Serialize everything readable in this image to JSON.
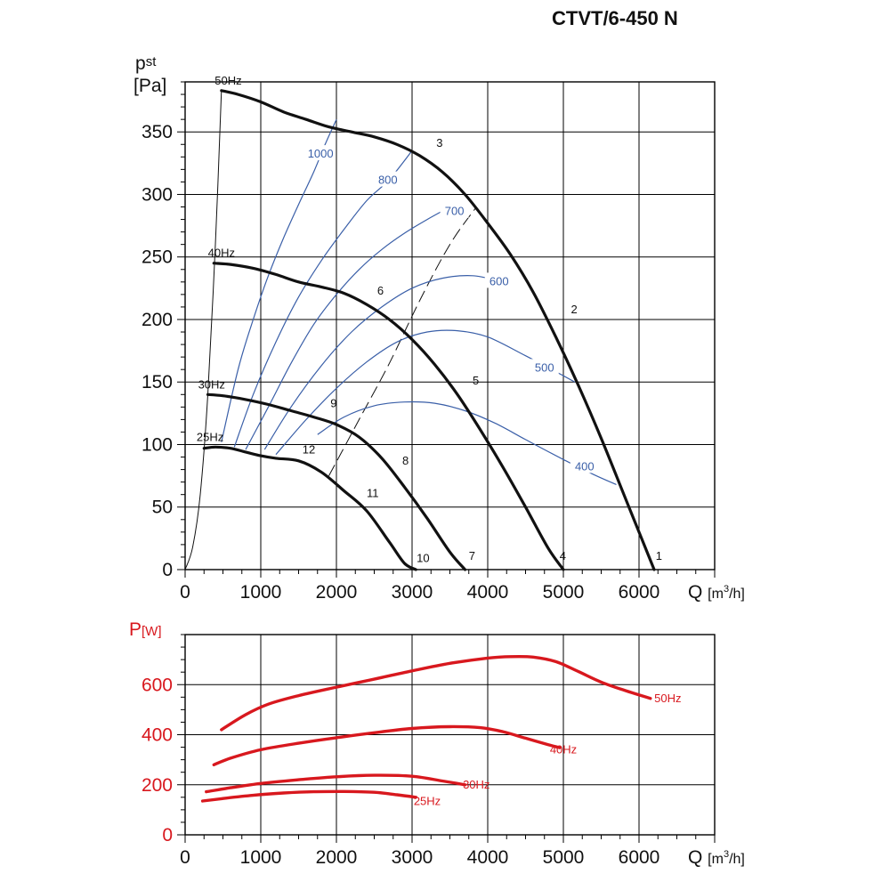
{
  "title": "CTVT/6-450 N",
  "chart_data": [
    {
      "type": "line",
      "ylabel_main": "p",
      "ylabel_sub": "st",
      "yunit": "[Pa]",
      "xlabel": "Q",
      "xunit_pre": "[m",
      "xunit_sup": "3",
      "xunit_post": "/h]",
      "xlim": [
        0,
        7000
      ],
      "ylim": [
        0,
        390
      ],
      "xticks": [
        0,
        1000,
        2000,
        3000,
        4000,
        5000,
        6000
      ],
      "yticks": [
        0,
        50,
        100,
        150,
        200,
        250,
        300,
        350
      ],
      "grid": true,
      "series": [
        {
          "name": "50Hz",
          "color": "#111111",
          "width": 3.2,
          "x": [
            480,
            700,
            1000,
            1300,
            1600,
            1900,
            2200,
            2500,
            2800,
            3100,
            3400,
            3700,
            4000,
            4300,
            4600,
            4900,
            5200,
            5500,
            5800,
            6000,
            6200
          ],
          "y": [
            383,
            380,
            374,
            366,
            360,
            354,
            350,
            346,
            340,
            331,
            318,
            300,
            277,
            252,
            222,
            186,
            147,
            105,
            60,
            30,
            0
          ]
        },
        {
          "name": "40Hz",
          "color": "#111111",
          "width": 3.2,
          "x": [
            380,
            600,
            900,
            1200,
            1500,
            1800,
            2100,
            2400,
            2700,
            3000,
            3300,
            3600,
            3900,
            4200,
            4500,
            4800,
            5000
          ],
          "y": [
            245,
            244,
            241,
            236,
            230,
            226,
            221,
            212,
            200,
            184,
            164,
            140,
            112,
            82,
            50,
            17,
            0
          ]
        },
        {
          "name": "30Hz",
          "color": "#111111",
          "width": 3.2,
          "x": [
            300,
            500,
            800,
            1100,
            1400,
            1700,
            2000,
            2300,
            2600,
            2900,
            3200,
            3500,
            3700
          ],
          "y": [
            140,
            139,
            136,
            132,
            127,
            122,
            116,
            106,
            89,
            66,
            41,
            14,
            0
          ]
        },
        {
          "name": "25Hz",
          "color": "#111111",
          "width": 3.2,
          "x": [
            250,
            400,
            600,
            800,
            1000,
            1200,
            1500,
            1800,
            2100,
            2400,
            2700,
            2900,
            3050
          ],
          "y": [
            97,
            98,
            97,
            94,
            91,
            89,
            87,
            78,
            63,
            47,
            22,
            5,
            0
          ]
        }
      ],
      "system_lines": [
        {
          "x": [
            0,
            100,
            200,
            300,
            400,
            480
          ],
          "y": [
            0,
            18,
            60,
            140,
            260,
            383
          ]
        },
        {
          "x": [
            1900,
            2300,
            2700,
            3100,
            3500,
            3850
          ],
          "y": [
            75,
            120,
            165,
            215,
            260,
            290
          ],
          "dashed": true
        }
      ],
      "efficiency_lines": [
        {
          "label": "1000",
          "x": [
            480,
            700,
            900,
            1100,
            1300,
            1500,
            1700,
            1850,
            2000
          ],
          "y": [
            102,
            160,
            200,
            235,
            265,
            292,
            318,
            340,
            360
          ],
          "label_at": [
            1790,
            333
          ]
        },
        {
          "label": "800",
          "x": [
            650,
            900,
            1200,
            1500,
            1800,
            2100,
            2400,
            2700,
            3000
          ],
          "y": [
            98,
            140,
            182,
            218,
            247,
            272,
            295,
            312,
            335
          ],
          "label_at": [
            2680,
            312
          ]
        },
        {
          "label": "700",
          "x": [
            800,
            1100,
            1400,
            1700,
            2000,
            2300,
            2600,
            2900,
            3200,
            3500
          ],
          "y": [
            96,
            130,
            165,
            196,
            220,
            240,
            256,
            269,
            280,
            290
          ],
          "label_at": [
            3560,
            287
          ]
        },
        {
          "label": "600",
          "x": [
            1050,
            1400,
            1800,
            2200,
            2600,
            3000,
            3400,
            3800,
            4150
          ],
          "y": [
            96,
            130,
            163,
            190,
            210,
            225,
            233,
            235,
            231
          ],
          "label_at": [
            4150,
            231
          ]
        },
        {
          "label": "500",
          "x": [
            1200,
            1600,
            2000,
            2400,
            2800,
            3200,
            3600,
            4000,
            4500,
            5000,
            5150
          ],
          "y": [
            92,
            120,
            145,
            166,
            182,
            190,
            191,
            186,
            171,
            155,
            150
          ],
          "label_at": [
            4750,
            162
          ]
        },
        {
          "label": "400",
          "x": [
            1750,
            2100,
            2500,
            2900,
            3300,
            3700,
            4100,
            4500,
            5000,
            5400,
            5700
          ],
          "y": [
            108,
            122,
            131,
            134,
            133,
            127,
            117,
            104,
            88,
            76,
            68
          ],
          "label_at": [
            5280,
            83
          ]
        }
      ],
      "points": [
        {
          "label": "1",
          "x": 6220,
          "y": 8
        },
        {
          "label": "2",
          "x": 5100,
          "y": 205
        },
        {
          "label": "3",
          "x": 3320,
          "y": 338
        },
        {
          "label": "4",
          "x": 4950,
          "y": 8
        },
        {
          "label": "5",
          "x": 3800,
          "y": 148
        },
        {
          "label": "6",
          "x": 2540,
          "y": 220
        },
        {
          "label": "7",
          "x": 3750,
          "y": 8
        },
        {
          "label": "8",
          "x": 2870,
          "y": 84
        },
        {
          "label": "9",
          "x": 1920,
          "y": 130
        },
        {
          "label": "10",
          "x": 3060,
          "y": 6
        },
        {
          "label": "11",
          "x": 2400,
          "y": 58
        },
        {
          "label": "12",
          "x": 1550,
          "y": 93
        }
      ],
      "freq_labels": [
        {
          "text": "50Hz",
          "x": 570,
          "y": 388
        },
        {
          "text": "40Hz",
          "x": 480,
          "y": 250
        },
        {
          "text": "30Hz",
          "x": 350,
          "y": 145
        },
        {
          "text": "25Hz",
          "x": 330,
          "y": 103
        }
      ]
    },
    {
      "type": "line",
      "ylabel_main": "P",
      "yunit": "[W]",
      "xlabel": "Q",
      "xunit_pre": "[m",
      "xunit_sup": "3",
      "xunit_post": "/h]",
      "xlim": [
        0,
        7000
      ],
      "ylim": [
        0,
        800
      ],
      "xticks": [
        0,
        1000,
        2000,
        3000,
        4000,
        5000,
        6000
      ],
      "yticks": [
        0,
        200,
        400,
        600
      ],
      "grid": true,
      "series": [
        {
          "name": "50Hz",
          "color": "#d8181e",
          "width": 3.4,
          "x": [
            480,
            800,
            1100,
            1500,
            2000,
            2500,
            3000,
            3500,
            4000,
            4300,
            4600,
            4900,
            5200,
            5500,
            5800,
            6150
          ],
          "y": [
            420,
            480,
            522,
            556,
            590,
            622,
            655,
            685,
            706,
            712,
            710,
            692,
            652,
            610,
            578,
            545
          ]
        },
        {
          "name": "40Hz",
          "color": "#d8181e",
          "width": 3.4,
          "x": [
            380,
            600,
            1000,
            1500,
            2000,
            2500,
            3000,
            3500,
            3900,
            4200,
            4500,
            4800,
            4950
          ],
          "y": [
            280,
            306,
            340,
            366,
            388,
            408,
            425,
            432,
            428,
            412,
            386,
            360,
            348
          ]
        },
        {
          "name": "30Hz",
          "color": "#d8181e",
          "width": 3.4,
          "x": [
            280,
            600,
            1000,
            1500,
            2000,
            2500,
            3000,
            3400,
            3700
          ],
          "y": [
            172,
            188,
            205,
            220,
            232,
            238,
            234,
            215,
            200
          ]
        },
        {
          "name": "25Hz",
          "color": "#d8181e",
          "width": 3.4,
          "x": [
            230,
            500,
            900,
            1300,
            1700,
            2100,
            2500,
            2800,
            3050
          ],
          "y": [
            135,
            145,
            158,
            167,
            172,
            173,
            170,
            160,
            150
          ]
        }
      ],
      "freq_labels": [
        {
          "text": "50Hz",
          "x": 6380,
          "y": 530
        },
        {
          "text": "40Hz",
          "x": 5000,
          "y": 325
        },
        {
          "text": "30Hz",
          "x": 3850,
          "y": 185
        },
        {
          "text": "25Hz",
          "x": 3200,
          "y": 120
        }
      ]
    }
  ]
}
